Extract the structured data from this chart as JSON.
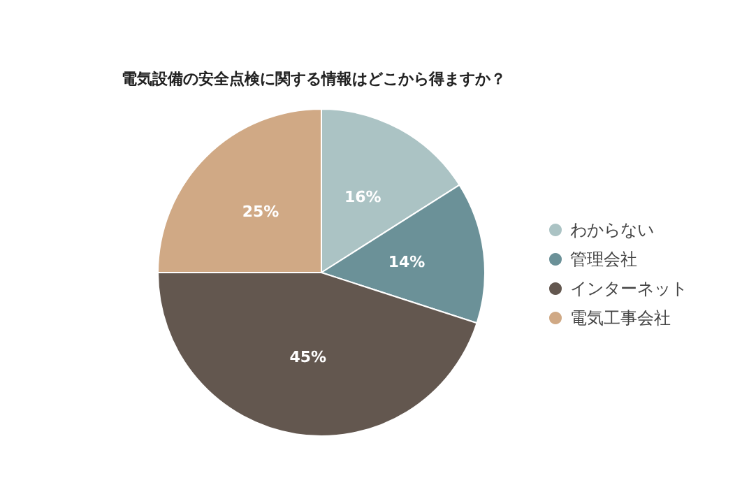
{
  "chart_data": {
    "type": "pie",
    "title": "電気設備の安全点検に関する情報はどこから得ますか？",
    "categories": [
      "わからない",
      "管理会社",
      "インターネット",
      "電気工事会社"
    ],
    "values": [
      16,
      14,
      45,
      25
    ],
    "colors": [
      "#abc3c4",
      "#6b9198",
      "#63574f",
      "#d0a985"
    ],
    "value_labels": [
      "16%",
      "14%",
      "45%",
      "25%"
    ],
    "legend": "right"
  }
}
